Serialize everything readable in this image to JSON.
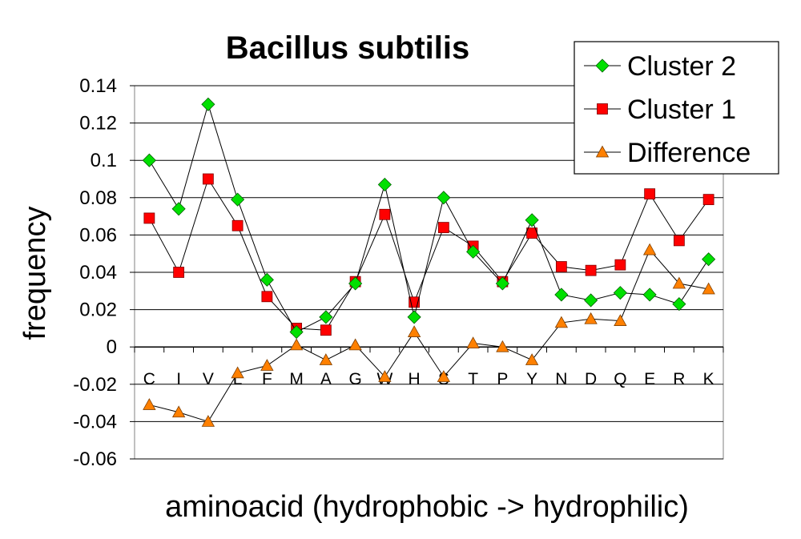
{
  "chart_data": {
    "type": "line",
    "title": "Bacillus subtilis",
    "xlabel": "aminoacid (hydrophobic -> hydrophilic)",
    "ylabel": "frequency",
    "ylim": [
      -0.06,
      0.14
    ],
    "yticks": [
      "0.14",
      "0.12",
      "0.1",
      "0.08",
      "0.06",
      "0.04",
      "0.02",
      "0",
      "-0.02",
      "-0.04",
      "-0.06"
    ],
    "grid": true,
    "legend_position": "top-right",
    "categories": [
      "C",
      "I",
      "V",
      "L",
      "F",
      "M",
      "A",
      "G",
      "W",
      "H",
      "S",
      "T",
      "P",
      "Y",
      "N",
      "D",
      "Q",
      "E",
      "R",
      "K"
    ],
    "series": [
      {
        "name": "Cluster 2",
        "color": "#00e000",
        "marker": "diamond",
        "values": [
          0.1,
          0.074,
          0.13,
          0.079,
          0.036,
          0.008,
          0.016,
          0.034,
          0.087,
          0.016,
          0.08,
          0.051,
          0.034,
          0.068,
          0.028,
          0.025,
          0.029,
          0.028,
          0.023,
          0.047
        ]
      },
      {
        "name": "Cluster 1",
        "color": "#ff0000",
        "marker": "square",
        "values": [
          0.069,
          0.04,
          0.09,
          0.065,
          0.027,
          0.01,
          0.009,
          0.035,
          0.071,
          0.024,
          0.064,
          0.054,
          0.035,
          0.061,
          0.043,
          0.041,
          0.044,
          0.082,
          0.057,
          0.079
        ]
      },
      {
        "name": "Difference",
        "color": "#ff8000",
        "marker": "triangle",
        "values": [
          -0.031,
          -0.035,
          -0.04,
          -0.014,
          -0.01,
          0.001,
          -0.007,
          0.001,
          -0.016,
          0.008,
          -0.016,
          0.002,
          0.0,
          -0.007,
          0.013,
          0.015,
          0.014,
          0.052,
          0.034,
          0.031
        ]
      }
    ]
  }
}
